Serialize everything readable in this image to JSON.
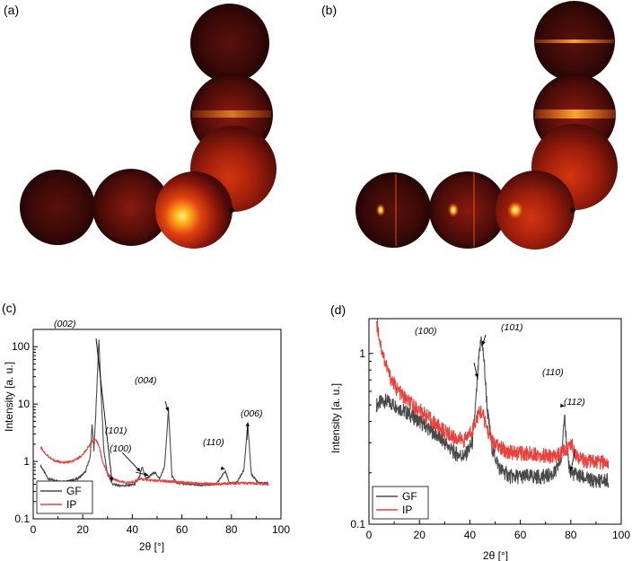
{
  "panels": {
    "a": {
      "label": "(a)"
    },
    "b": {
      "label": "(b)"
    },
    "c": {
      "label": "(c)"
    },
    "d": {
      "label": "(d)"
    }
  },
  "colors": {
    "GF": "#4a4a4a",
    "IP": "#e8423e",
    "detector_dark": "#2a0606",
    "detector_glow": "#ff8a1a"
  },
  "chart_data": [
    {
      "panel": "c",
      "type": "line",
      "xlabel": "2θ [°]",
      "ylabel": "Intensity [a. u.]",
      "xlim": [
        0,
        100
      ],
      "ylim": [
        0.1,
        200
      ],
      "yscale": "log",
      "xticks": [
        0,
        20,
        40,
        60,
        80,
        100
      ],
      "yticks": [
        0.1,
        1,
        10,
        100
      ],
      "yticklabels": [
        "0.1",
        "1",
        "10",
        "100"
      ],
      "legend": {
        "position": "bottom-left",
        "entries": [
          "GF",
          "IP"
        ]
      },
      "series": [
        {
          "name": "GF",
          "color": "#4a4a4a",
          "x": [
            3,
            6,
            10,
            14,
            18,
            21,
            23,
            23.8,
            24.5,
            25.5,
            26.5,
            27.5,
            28.5,
            30,
            32,
            35,
            38,
            41,
            43,
            44,
            45.5,
            47,
            49,
            51,
            53,
            54.6,
            56,
            58,
            62,
            68,
            74,
            77.6,
            79,
            82,
            85,
            86.6,
            88,
            91,
            95
          ],
          "y": [
            0.85,
            0.5,
            0.45,
            0.45,
            0.5,
            0.65,
            1.2,
            4.5,
            1.5,
            12,
            140,
            12,
            1.5,
            0.6,
            0.4,
            0.38,
            0.38,
            0.4,
            0.55,
            0.8,
            0.5,
            0.55,
            0.65,
            0.5,
            0.8,
            8,
            0.55,
            0.42,
            0.4,
            0.39,
            0.4,
            0.7,
            0.42,
            0.42,
            0.7,
            4.5,
            0.6,
            0.42,
            0.42
          ]
        },
        {
          "name": "IP",
          "color": "#e8423e",
          "x": [
            3,
            5,
            8,
            12,
            16,
            20,
            23,
            25,
            26.5,
            28,
            30,
            32,
            35,
            38,
            41,
            43,
            45,
            50,
            55,
            60,
            65,
            70,
            75,
            80,
            85,
            90,
            95
          ],
          "y": [
            1.8,
            1.35,
            1.05,
            0.95,
            1.0,
            1.3,
            2.0,
            2.5,
            1.9,
            1.0,
            0.62,
            0.5,
            0.45,
            0.42,
            0.45,
            0.5,
            0.48,
            0.46,
            0.45,
            0.43,
            0.42,
            0.41,
            0.4,
            0.42,
            0.42,
            0.41,
            0.4
          ]
        }
      ],
      "annotations": [
        "(002)",
        "(004)",
        "(101)",
        "(100)",
        "(110)",
        "(006)"
      ]
    },
    {
      "panel": "d",
      "type": "line",
      "xlabel": "2θ [°]",
      "ylabel": "Intensity [a. u.]",
      "xlim": [
        0,
        100
      ],
      "ylim": [
        0.1,
        1.6
      ],
      "yscale": "log",
      "xticks": [
        0,
        20,
        40,
        60,
        80,
        100
      ],
      "yticks": [
        0.1,
        1
      ],
      "yticklabels": [
        "0.1",
        "1"
      ],
      "legend": {
        "position": "bottom-left",
        "entries": [
          "GF",
          "IP"
        ]
      },
      "series": [
        {
          "name": "GF",
          "color": "#4a4a4a",
          "x": [
            3,
            6,
            10,
            14,
            18,
            22,
            26,
            30,
            34,
            38,
            41,
            42.5,
            43.5,
            44.5,
            45.5,
            47,
            49,
            52,
            56,
            60,
            65,
            70,
            74,
            76.5,
            77.5,
            78.5,
            80,
            84,
            88,
            92,
            95
          ],
          "y": [
            0.5,
            0.53,
            0.5,
            0.46,
            0.42,
            0.38,
            0.34,
            0.3,
            0.26,
            0.25,
            0.3,
            0.55,
            0.9,
            1.25,
            0.95,
            0.45,
            0.27,
            0.21,
            0.19,
            0.19,
            0.19,
            0.19,
            0.2,
            0.25,
            0.48,
            0.25,
            0.2,
            0.19,
            0.18,
            0.18,
            0.18
          ]
        },
        {
          "name": "IP",
          "color": "#e8423e",
          "x": [
            3,
            5,
            8,
            11,
            14,
            18,
            22,
            26,
            30,
            34,
            38,
            41,
            43,
            44.5,
            46,
            48,
            50,
            54,
            58,
            62,
            66,
            70,
            74,
            78,
            80,
            82,
            84,
            88,
            92,
            95
          ],
          "y": [
            1.55,
            1.05,
            0.75,
            0.62,
            0.55,
            0.49,
            0.44,
            0.39,
            0.35,
            0.32,
            0.31,
            0.36,
            0.43,
            0.46,
            0.4,
            0.32,
            0.29,
            0.27,
            0.26,
            0.26,
            0.26,
            0.25,
            0.25,
            0.27,
            0.3,
            0.26,
            0.24,
            0.23,
            0.23,
            0.23
          ]
        }
      ],
      "annotations": [
        "(100)",
        "(101)",
        "(110)",
        "(112)"
      ]
    }
  ]
}
